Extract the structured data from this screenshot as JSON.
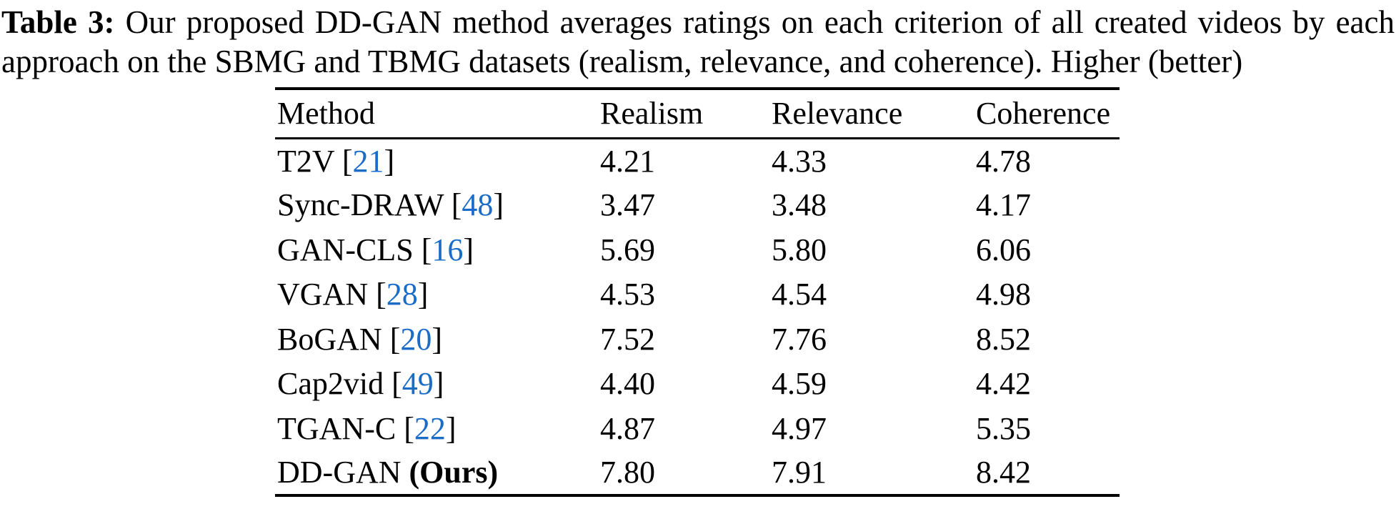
{
  "caption": {
    "label": "Table 3:",
    "text": "Our proposed DD-GAN method averages ratings on each criterion of all created videos by each approach on the SBMG and TBMG datasets (realism, relevance, and coherence). Higher (better)"
  },
  "table": {
    "headers": [
      "Method",
      "Realism",
      "Relevance",
      "Coherence"
    ],
    "cite_brackets": {
      "open": "[",
      "close": "]"
    },
    "rows": [
      {
        "name": "T2V",
        "cite": "21",
        "values": [
          "4.21",
          "4.33",
          "4.78"
        ]
      },
      {
        "name": "Sync-DRAW",
        "cite": "48",
        "values": [
          "3.47",
          "3.48",
          "4.17"
        ]
      },
      {
        "name": "GAN-CLS",
        "cite": "16",
        "values": [
          "5.69",
          "5.80",
          "6.06"
        ]
      },
      {
        "name": "VGAN",
        "cite": "28",
        "values": [
          "4.53",
          "4.54",
          "4.98"
        ]
      },
      {
        "name": "BoGAN",
        "cite": "20",
        "values": [
          "7.52",
          "7.76",
          "8.52"
        ]
      },
      {
        "name": "Cap2vid",
        "cite": "49",
        "values": [
          "4.40",
          "4.59",
          "4.42"
        ]
      },
      {
        "name": "TGAN-C",
        "cite": "22",
        "values": [
          "4.87",
          "4.97",
          "5.35"
        ]
      },
      {
        "name": "DD-GAN",
        "suffix": "(Ours)",
        "values": [
          "7.80",
          "7.91",
          "8.42"
        ]
      }
    ]
  },
  "colors": {
    "citation_blue": "#1a6cc7",
    "text": "#000000",
    "background": "#ffffff"
  }
}
